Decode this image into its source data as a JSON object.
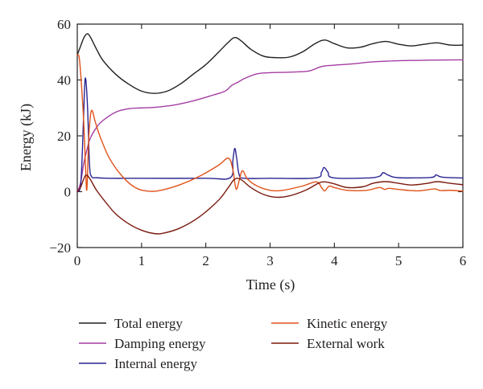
{
  "chart_data": {
    "type": "line",
    "title": "",
    "xlabel": "Time (s)",
    "ylabel": "Energy (kJ)",
    "xlim": [
      0,
      6
    ],
    "ylim": [
      -20,
      60
    ],
    "x_ticks": [
      0,
      1,
      2,
      3,
      4,
      5,
      6
    ],
    "y_ticks": [
      -20,
      0,
      20,
      40,
      60
    ],
    "x_tick_labels": [
      "0",
      "1",
      "2",
      "3",
      "4",
      "5",
      "6"
    ],
    "y_tick_labels": [
      "−20",
      "0",
      "20",
      "40",
      "60"
    ],
    "grid": false,
    "legend_position": "bottom",
    "series": [
      {
        "name": "Total energy",
        "color": "#231f20",
        "points": [
          [
            0,
            49
          ],
          [
            0.05,
            52
          ],
          [
            0.1,
            55
          ],
          [
            0.15,
            56.5
          ],
          [
            0.2,
            55.5
          ],
          [
            0.3,
            51
          ],
          [
            0.4,
            47
          ],
          [
            0.6,
            42
          ],
          [
            0.8,
            38.5
          ],
          [
            1.0,
            36
          ],
          [
            1.2,
            35.2
          ],
          [
            1.4,
            36
          ],
          [
            1.6,
            38.5
          ],
          [
            1.8,
            42
          ],
          [
            2.0,
            45.5
          ],
          [
            2.2,
            50
          ],
          [
            2.35,
            53.5
          ],
          [
            2.45,
            55.2
          ],
          [
            2.55,
            54
          ],
          [
            2.7,
            51
          ],
          [
            2.9,
            48.5
          ],
          [
            3.1,
            48
          ],
          [
            3.3,
            48.2
          ],
          [
            3.5,
            50
          ],
          [
            3.7,
            53
          ],
          [
            3.85,
            54.3
          ],
          [
            4.0,
            53
          ],
          [
            4.2,
            51.5
          ],
          [
            4.4,
            51.7
          ],
          [
            4.6,
            53
          ],
          [
            4.8,
            53.8
          ],
          [
            5.0,
            52.8
          ],
          [
            5.2,
            52.2
          ],
          [
            5.4,
            52.8
          ],
          [
            5.6,
            53.3
          ],
          [
            5.8,
            52.5
          ],
          [
            6.0,
            52.5
          ]
        ]
      },
      {
        "name": "Damping energy",
        "color": "#a43da2",
        "points": [
          [
            0,
            0
          ],
          [
            0.05,
            3
          ],
          [
            0.1,
            10
          ],
          [
            0.15,
            15
          ],
          [
            0.2,
            19
          ],
          [
            0.3,
            23
          ],
          [
            0.4,
            25.5
          ],
          [
            0.6,
            28.5
          ],
          [
            0.8,
            29.7
          ],
          [
            1.0,
            30
          ],
          [
            1.2,
            30.2
          ],
          [
            1.5,
            31
          ],
          [
            1.8,
            32.5
          ],
          [
            2.1,
            34.5
          ],
          [
            2.3,
            36
          ],
          [
            2.4,
            38
          ],
          [
            2.5,
            39.2
          ],
          [
            2.6,
            40.5
          ],
          [
            2.8,
            42.2
          ],
          [
            3.0,
            42.6
          ],
          [
            3.3,
            42.8
          ],
          [
            3.6,
            43.2
          ],
          [
            3.8,
            44.8
          ],
          [
            4.0,
            45.3
          ],
          [
            4.3,
            45.8
          ],
          [
            4.6,
            46.5
          ],
          [
            5.0,
            46.9
          ],
          [
            5.5,
            47.1
          ],
          [
            6.0,
            47.2
          ]
        ]
      },
      {
        "name": "Internal energy",
        "color": "#2a2491",
        "points": [
          [
            0,
            0
          ],
          [
            0.05,
            2
          ],
          [
            0.08,
            15
          ],
          [
            0.11,
            35
          ],
          [
            0.13,
            40.5
          ],
          [
            0.16,
            30
          ],
          [
            0.19,
            10
          ],
          [
            0.22,
            5.5
          ],
          [
            0.3,
            5
          ],
          [
            0.5,
            4.8
          ],
          [
            1.0,
            4.8
          ],
          [
            2.0,
            4.8
          ],
          [
            2.38,
            5
          ],
          [
            2.42,
            11
          ],
          [
            2.45,
            15.5
          ],
          [
            2.48,
            12
          ],
          [
            2.52,
            6
          ],
          [
            2.6,
            4.8
          ],
          [
            3.0,
            4.8
          ],
          [
            3.7,
            4.9
          ],
          [
            3.8,
            7
          ],
          [
            3.84,
            8.7
          ],
          [
            3.9,
            7
          ],
          [
            3.98,
            5
          ],
          [
            4.5,
            4.9
          ],
          [
            4.7,
            5.5
          ],
          [
            4.76,
            6.8
          ],
          [
            4.85,
            5.8
          ],
          [
            5.0,
            5
          ],
          [
            5.5,
            5.1
          ],
          [
            5.58,
            6
          ],
          [
            5.68,
            5.2
          ],
          [
            6.0,
            4.9
          ]
        ]
      },
      {
        "name": "Kinetic energy",
        "color": "#e0521a",
        "points": [
          [
            0,
            49
          ],
          [
            0.03,
            48
          ],
          [
            0.06,
            40
          ],
          [
            0.1,
            25
          ],
          [
            0.13,
            8
          ],
          [
            0.15,
            1
          ],
          [
            0.18,
            20
          ],
          [
            0.22,
            29
          ],
          [
            0.28,
            25
          ],
          [
            0.35,
            20
          ],
          [
            0.5,
            12
          ],
          [
            0.7,
            5.5
          ],
          [
            0.9,
            1.5
          ],
          [
            1.1,
            0.2
          ],
          [
            1.3,
            0.5
          ],
          [
            1.6,
            2.5
          ],
          [
            1.9,
            5.5
          ],
          [
            2.2,
            9.5
          ],
          [
            2.35,
            12
          ],
          [
            2.42,
            8
          ],
          [
            2.47,
            1
          ],
          [
            2.52,
            4
          ],
          [
            2.57,
            7.5
          ],
          [
            2.65,
            4.5
          ],
          [
            2.8,
            2
          ],
          [
            3.0,
            0.5
          ],
          [
            3.2,
            0.5
          ],
          [
            3.5,
            2
          ],
          [
            3.72,
            3.5
          ],
          [
            3.8,
            1.5
          ],
          [
            3.85,
            0.3
          ],
          [
            3.92,
            2
          ],
          [
            4.0,
            1.5
          ],
          [
            4.2,
            0.5
          ],
          [
            4.5,
            0.5
          ],
          [
            4.7,
            1.5
          ],
          [
            4.78,
            0.8
          ],
          [
            4.85,
            1.2
          ],
          [
            5.0,
            0.8
          ],
          [
            5.3,
            0.3
          ],
          [
            5.55,
            1
          ],
          [
            5.65,
            0.4
          ],
          [
            5.8,
            0.5
          ],
          [
            6.0,
            0.2
          ]
        ]
      },
      {
        "name": "External work",
        "color": "#7a1a0f",
        "points": [
          [
            0,
            0
          ],
          [
            0.05,
            1.5
          ],
          [
            0.1,
            4.5
          ],
          [
            0.14,
            6
          ],
          [
            0.2,
            4.5
          ],
          [
            0.3,
            0.5
          ],
          [
            0.45,
            -4
          ],
          [
            0.6,
            -8
          ],
          [
            0.8,
            -11.5
          ],
          [
            1.0,
            -13.8
          ],
          [
            1.2,
            -15
          ],
          [
            1.35,
            -14.8
          ],
          [
            1.6,
            -13
          ],
          [
            1.9,
            -9
          ],
          [
            2.2,
            -3
          ],
          [
            2.35,
            1.5
          ],
          [
            2.45,
            4.5
          ],
          [
            2.55,
            4.3
          ],
          [
            2.7,
            1.5
          ],
          [
            2.9,
            -1
          ],
          [
            3.1,
            -2
          ],
          [
            3.3,
            -1.5
          ],
          [
            3.55,
            0.5
          ],
          [
            3.75,
            3
          ],
          [
            3.85,
            3.5
          ],
          [
            4.0,
            2.8
          ],
          [
            4.2,
            1.5
          ],
          [
            4.45,
            1.8
          ],
          [
            4.6,
            3
          ],
          [
            4.8,
            3.6
          ],
          [
            5.0,
            3
          ],
          [
            5.2,
            2.4
          ],
          [
            5.45,
            3
          ],
          [
            5.6,
            3.6
          ],
          [
            5.8,
            3
          ],
          [
            6.0,
            2.5
          ]
        ]
      }
    ]
  }
}
